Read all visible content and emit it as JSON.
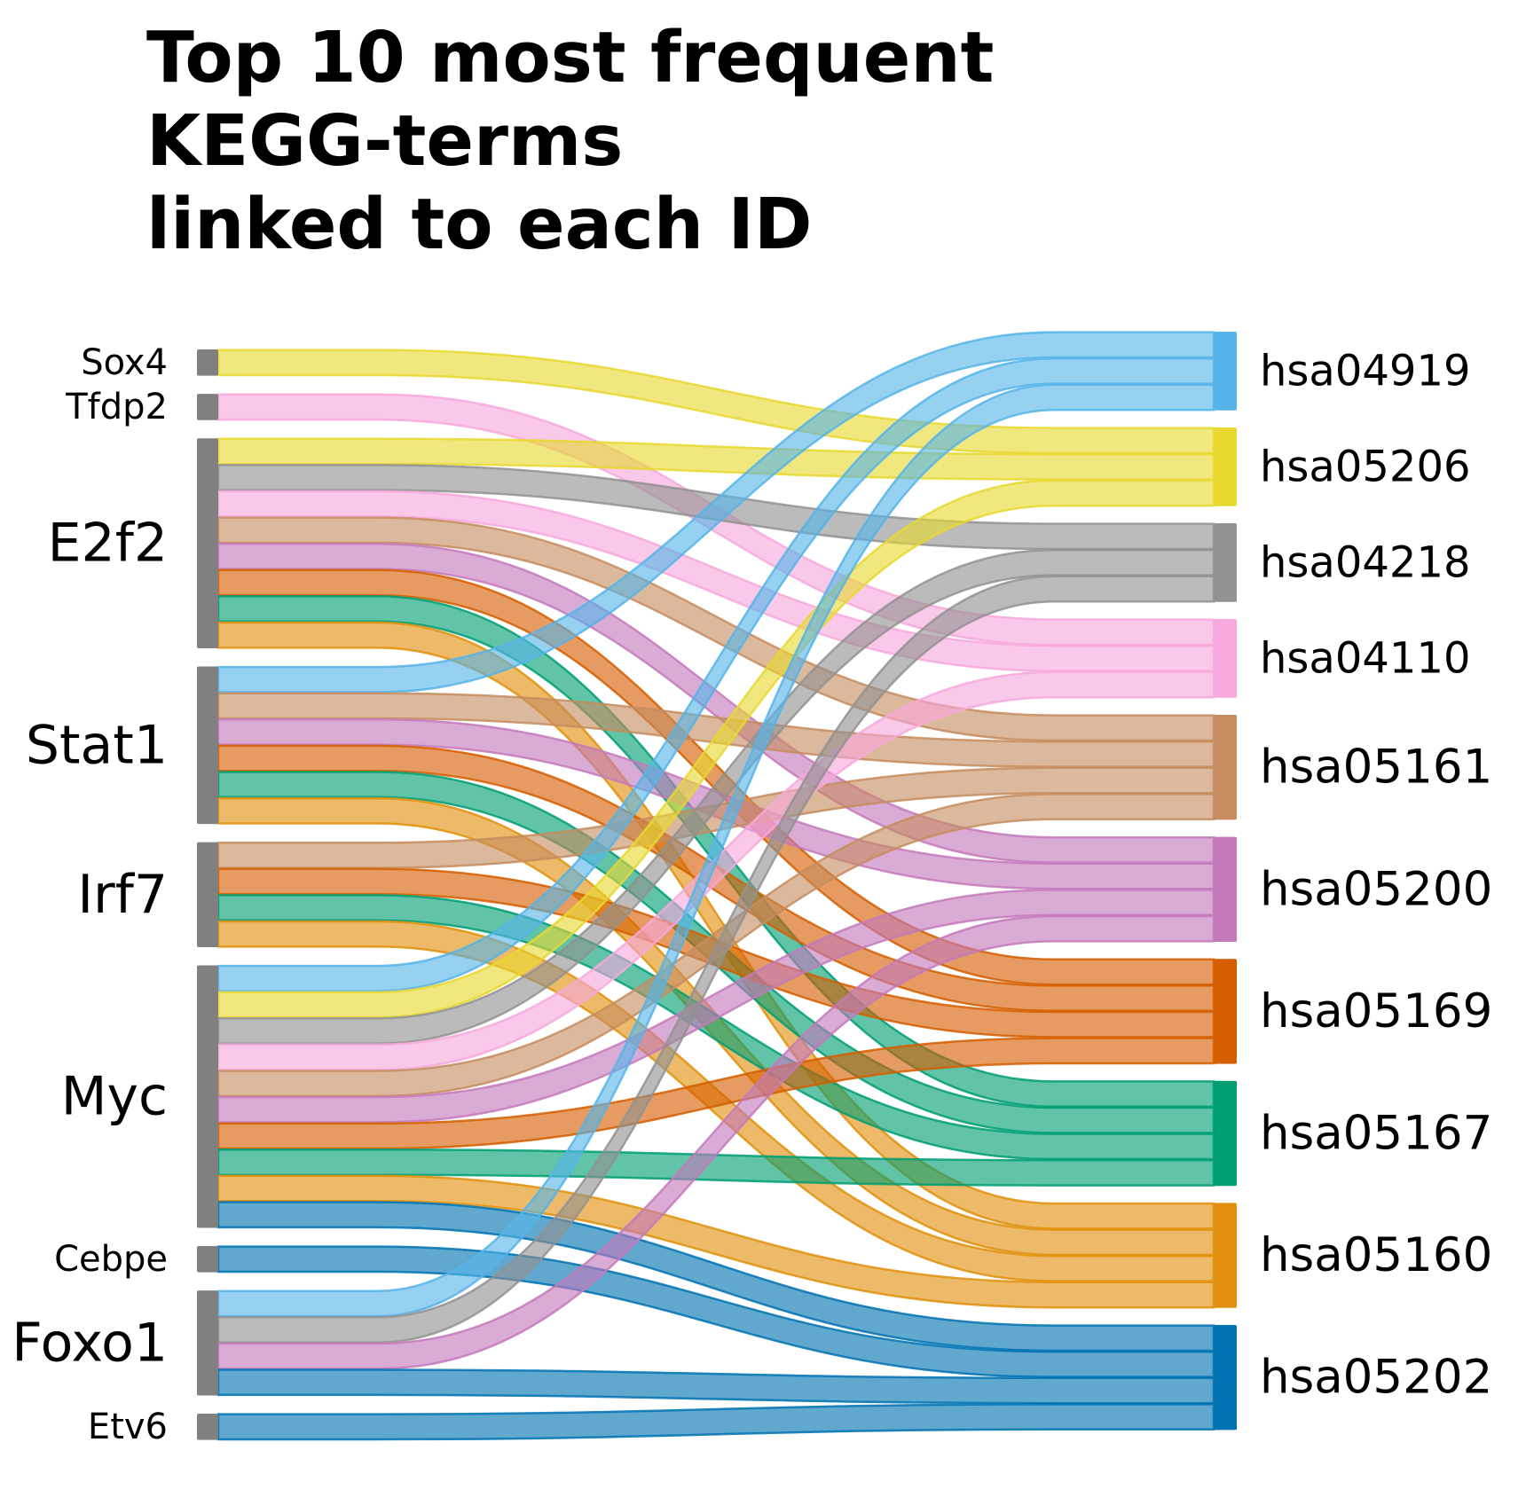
{
  "title_lines": [
    "Top 10 most frequent",
    "KEGG-terms",
    "linked to each ID"
  ],
  "chart_data": {
    "type": "sankey",
    "colors": {
      "source_node": "#808080",
      "hsa04919": "#56b4e9",
      "hsa05206": "#e8d830",
      "hsa04218": "#929292",
      "hsa04110": "#f7a8dc",
      "hsa05161": "#c68c5f",
      "hsa05200": "#c479bb",
      "hsa05169": "#d55e00",
      "hsa05167": "#009e73",
      "hsa05160": "#e0900c",
      "hsa05202": "#0072b2"
    },
    "sources": [
      {
        "id": "Sox4",
        "targets": [
          "hsa05206"
        ]
      },
      {
        "id": "Tfdp2",
        "targets": [
          "hsa04110"
        ]
      },
      {
        "id": "E2f2",
        "targets": [
          "hsa05206",
          "hsa04218",
          "hsa04110",
          "hsa05161",
          "hsa05200",
          "hsa05169",
          "hsa05167",
          "hsa05160"
        ]
      },
      {
        "id": "Stat1",
        "targets": [
          "hsa04919",
          "hsa05161",
          "hsa05200",
          "hsa05169",
          "hsa05167",
          "hsa05160"
        ]
      },
      {
        "id": "Irf7",
        "targets": [
          "hsa05161",
          "hsa05169",
          "hsa05167",
          "hsa05160"
        ]
      },
      {
        "id": "Myc",
        "targets": [
          "hsa04919",
          "hsa05206",
          "hsa04218",
          "hsa04110",
          "hsa05161",
          "hsa05200",
          "hsa05169",
          "hsa05167",
          "hsa05160",
          "hsa05202"
        ]
      },
      {
        "id": "Cebpe",
        "targets": [
          "hsa05202"
        ]
      },
      {
        "id": "Foxo1",
        "targets": [
          "hsa04919",
          "hsa04218",
          "hsa05200",
          "hsa05202"
        ]
      },
      {
        "id": "Etv6",
        "targets": [
          "hsa05202"
        ]
      }
    ],
    "targets": [
      "hsa04919",
      "hsa05206",
      "hsa04218",
      "hsa04110",
      "hsa05161",
      "hsa05200",
      "hsa05169",
      "hsa05167",
      "hsa05160",
      "hsa05202"
    ]
  }
}
